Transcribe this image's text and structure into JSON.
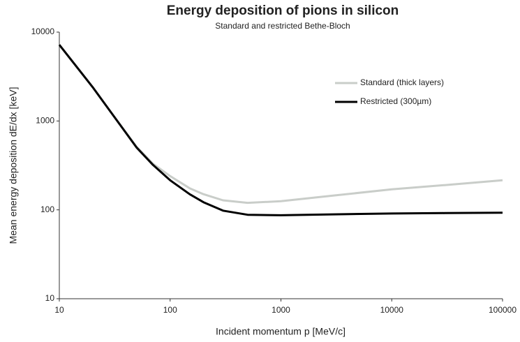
{
  "chart_data": {
    "type": "line",
    "title": "Energy deposition of pions in silicon",
    "subtitle": "Standard and restricted Bethe-Bloch",
    "x_label": "Incident momentum p [MeV/c]",
    "y_label": "Mean energy deposition dE/dx [keV]",
    "x": [
      10,
      20,
      30,
      50,
      70,
      100,
      150,
      200,
      300,
      500,
      1000,
      3000,
      10000,
      30000,
      100000
    ],
    "series": [
      {
        "name": "Standard (thick layers)",
        "color": "#c9cdc9",
        "values": [
          7200,
          2400,
          1200,
          510,
          330,
          240,
          175,
          150,
          128,
          120,
          125,
          145,
          170,
          190,
          215
        ]
      },
      {
        "name": "Restricted (300µm)",
        "color": "#000000",
        "values": [
          7200,
          2400,
          1200,
          500,
          320,
          215,
          150,
          122,
          98,
          88,
          87,
          89,
          91,
          92,
          93
        ]
      }
    ],
    "xlim": [
      10,
      100000
    ],
    "xticks": [
      10,
      100,
      1000,
      10000,
      100000
    ],
    "ylim": [
      10,
      10000
    ],
    "yticks": [
      10,
      100,
      1000,
      10000
    ],
    "xscale": "log",
    "yscale": "log",
    "grid": false,
    "legend": "upper right"
  }
}
